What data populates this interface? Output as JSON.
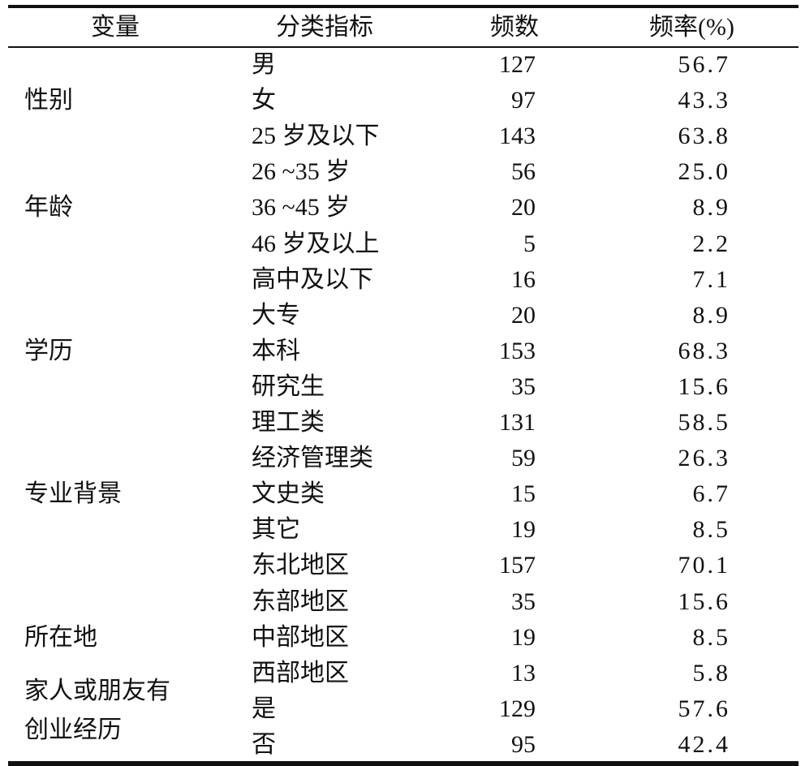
{
  "header": {
    "variable": "变量",
    "category": "分类指标",
    "frequency": "频数",
    "percent": "频率(%)"
  },
  "variables": [
    {
      "label": "性别",
      "row": 1
    },
    {
      "label": "年龄",
      "row": 4
    },
    {
      "label": "学历",
      "row": 8
    },
    {
      "label": "专业背景",
      "row": 12
    },
    {
      "label": "所在地",
      "row": 16
    },
    {
      "label": "家人或朋友有",
      "row": 17.5
    },
    {
      "label": "创业经历",
      "row": 18.6
    }
  ],
  "rows": [
    {
      "category": "男",
      "frequency": "127",
      "percent": "56.7"
    },
    {
      "category": "女",
      "frequency": "97",
      "percent": "43.3"
    },
    {
      "category": "25 岁及以下",
      "frequency": "143",
      "percent": "63.8"
    },
    {
      "category": "26 ~35 岁",
      "frequency": "56",
      "percent": "25.0"
    },
    {
      "category": "36 ~45 岁",
      "frequency": "20",
      "percent": "8.9"
    },
    {
      "category": "46 岁及以上",
      "frequency": "5",
      "percent": "2.2"
    },
    {
      "category": "高中及以下",
      "frequency": "16",
      "percent": "7.1"
    },
    {
      "category": "大专",
      "frequency": "20",
      "percent": "8.9"
    },
    {
      "category": "本科",
      "frequency": "153",
      "percent": "68.3"
    },
    {
      "category": "研究生",
      "frequency": "35",
      "percent": "15.6"
    },
    {
      "category": "理工类",
      "frequency": "131",
      "percent": "58.5"
    },
    {
      "category": "经济管理类",
      "frequency": "59",
      "percent": "26.3"
    },
    {
      "category": "文史类",
      "frequency": "15",
      "percent": "6.7"
    },
    {
      "category": "其它",
      "frequency": "19",
      "percent": "8.5"
    },
    {
      "category": "东北地区",
      "frequency": "157",
      "percent": "70.1"
    },
    {
      "category": "东部地区",
      "frequency": "35",
      "percent": "15.6"
    },
    {
      "category": "中部地区",
      "frequency": "19",
      "percent": "8.5"
    },
    {
      "category": "西部地区",
      "frequency": "13",
      "percent": "5.8"
    },
    {
      "category": "是",
      "frequency": "129",
      "percent": "57.6"
    },
    {
      "category": "否",
      "frequency": "95",
      "percent": "42.4"
    }
  ]
}
